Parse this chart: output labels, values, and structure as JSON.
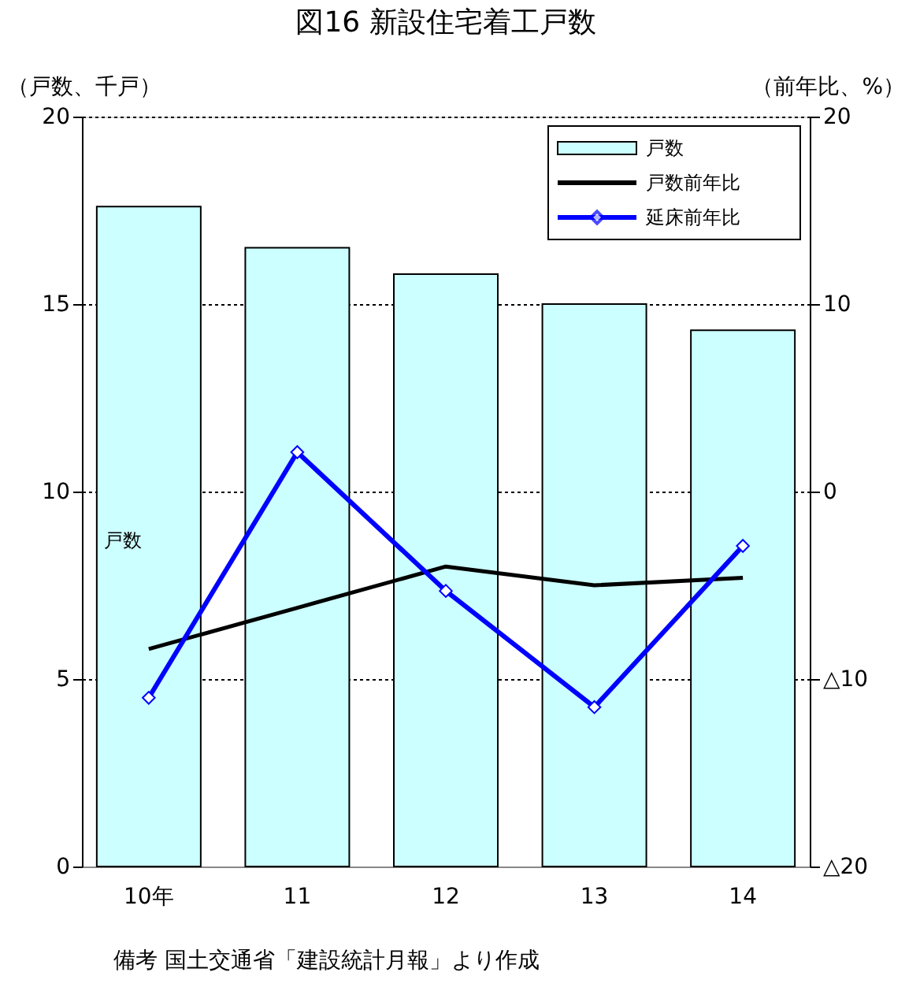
{
  "chart_data": {
    "type": "bar",
    "title": "図16  新設住宅着工戸数",
    "ylabel": "（戸数、千戸）",
    "y2label": "（前年比、%）",
    "categories": [
      "10年",
      "11",
      "12",
      "13",
      "14"
    ],
    "series": [
      {
        "name": "戸数",
        "color": "#ccffff",
        "values": [
          17.6,
          16.5,
          15.8,
          15.0,
          14.3
        ]
      },
      {
        "name": "戸数前年比",
        "type": "line",
        "axis": "y2",
        "color": "#000000",
        "marker": "none",
        "values": [
          -8.4,
          -6.2,
          -4.0,
          -5.0,
          -4.6
        ]
      },
      {
        "name": "延床前年比",
        "type": "line",
        "axis": "y2",
        "color": "#0000ff",
        "marker": "diamond",
        "values": [
          -11.0,
          2.1,
          -5.3,
          -11.5,
          -2.9
        ]
      }
    ],
    "ylim": [
      0,
      20
    ],
    "yticks": [
      0,
      5,
      10,
      15,
      20
    ],
    "y2lim": [
      -20,
      20
    ],
    "y2ticks": [
      {
        "value": -20,
        "label": "△20"
      },
      {
        "value": -10,
        "label": "△10"
      },
      0,
      10,
      20
    ],
    "grid": "y",
    "legend": "top right",
    "annotations": [
      "戸数",
      "備考 国土交通省「建設統計月報」より作成"
    ]
  }
}
